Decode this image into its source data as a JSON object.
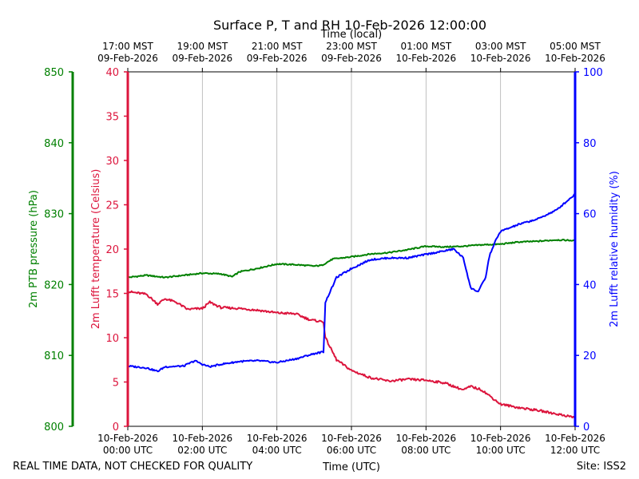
{
  "chart_data": {
    "type": "line",
    "title": "Surface P, T and RH 10-Feb-2026 12:00:00",
    "top_axis_label": "Time (local)",
    "bottom_axis_label": "Time (UTC)",
    "footer_left": "REAL TIME DATA, NOT CHECKED FOR QUALITY",
    "footer_right": "Site: ISS2",
    "x_range_hours_utc": [
      0,
      12
    ],
    "x_ticks_utc": [
      {
        "hour": 0,
        "date": "10-Feb-2026",
        "time": "00:00 UTC"
      },
      {
        "hour": 2,
        "date": "10-Feb-2026",
        "time": "02:00 UTC"
      },
      {
        "hour": 4,
        "date": "10-Feb-2026",
        "time": "04:00 UTC"
      },
      {
        "hour": 6,
        "date": "10-Feb-2026",
        "time": "06:00 UTC"
      },
      {
        "hour": 8,
        "date": "10-Feb-2026",
        "time": "08:00 UTC"
      },
      {
        "hour": 10,
        "date": "10-Feb-2026",
        "time": "10:00 UTC"
      },
      {
        "hour": 12,
        "date": "10-Feb-2026",
        "time": "12:00 UTC"
      }
    ],
    "x_ticks_local": [
      {
        "hour": 0,
        "time": "17:00 MST",
        "date": "09-Feb-2026"
      },
      {
        "hour": 2,
        "time": "19:00 MST",
        "date": "09-Feb-2026"
      },
      {
        "hour": 4,
        "time": "21:00 MST",
        "date": "09-Feb-2026"
      },
      {
        "hour": 6,
        "time": "23:00 MST",
        "date": "09-Feb-2026"
      },
      {
        "hour": 8,
        "time": "01:00 MST",
        "date": "10-Feb-2026"
      },
      {
        "hour": 10,
        "time": "03:00 MST",
        "date": "10-Feb-2026"
      },
      {
        "hour": 12,
        "time": "05:00 MST",
        "date": "10-Feb-2026"
      }
    ],
    "grid": true,
    "axes": {
      "pressure": {
        "label": "2m PTB pressure (hPa)",
        "range": [
          800,
          850
        ],
        "ticks": [
          800,
          810,
          820,
          830,
          840,
          850
        ],
        "color": "#008000"
      },
      "temperature": {
        "label": "2m Lufft temperature (Celsius)",
        "range": [
          0,
          40
        ],
        "ticks": [
          0,
          5,
          10,
          15,
          20,
          25,
          30,
          35,
          40
        ],
        "color": "#dc143c"
      },
      "humidity": {
        "label": "2m Lufft relative humidity (%)",
        "range": [
          0,
          100
        ],
        "ticks": [
          0,
          20,
          40,
          60,
          80,
          100
        ],
        "color": "#0000ff"
      }
    },
    "series": [
      {
        "name": "2m PTB pressure (hPa)",
        "axis": "pressure",
        "color": "#008000",
        "points": [
          [
            0,
            821.0
          ],
          [
            0.5,
            821.3
          ],
          [
            1,
            821.0
          ],
          [
            1.5,
            821.3
          ],
          [
            2,
            821.6
          ],
          [
            2.5,
            821.5
          ],
          [
            2.8,
            821.1
          ],
          [
            3,
            821.8
          ],
          [
            3.5,
            822.3
          ],
          [
            4,
            822.9
          ],
          [
            4.5,
            822.8
          ],
          [
            5,
            822.6
          ],
          [
            5.2,
            822.7
          ],
          [
            5.5,
            823.6
          ],
          [
            6,
            823.9
          ],
          [
            6.5,
            824.3
          ],
          [
            7,
            824.5
          ],
          [
            7.5,
            824.9
          ],
          [
            8,
            825.4
          ],
          [
            8.5,
            825.3
          ],
          [
            9,
            825.4
          ],
          [
            9.5,
            825.6
          ],
          [
            10,
            825.7
          ],
          [
            10.5,
            826.0
          ],
          [
            11,
            826.1
          ],
          [
            11.5,
            826.3
          ],
          [
            12,
            826.2
          ]
        ]
      },
      {
        "name": "2m Lufft temperature (Celsius)",
        "axis": "temperature",
        "color": "#dc143c",
        "points": [
          [
            0,
            15.2
          ],
          [
            0.5,
            14.9
          ],
          [
            0.8,
            13.8
          ],
          [
            1,
            14.4
          ],
          [
            1.3,
            14.0
          ],
          [
            1.6,
            13.2
          ],
          [
            2,
            13.3
          ],
          [
            2.2,
            14.0
          ],
          [
            2.5,
            13.4
          ],
          [
            3,
            13.3
          ],
          [
            3.5,
            13.1
          ],
          [
            4,
            12.8
          ],
          [
            4.5,
            12.7
          ],
          [
            4.9,
            12.0
          ],
          [
            5.25,
            11.8
          ],
          [
            5.3,
            10.0
          ],
          [
            5.6,
            7.5
          ],
          [
            6,
            6.3
          ],
          [
            6.5,
            5.5
          ],
          [
            7,
            5.1
          ],
          [
            7.5,
            5.3
          ],
          [
            8,
            5.2
          ],
          [
            8.5,
            4.9
          ],
          [
            9,
            4.1
          ],
          [
            9.2,
            4.5
          ],
          [
            9.5,
            4.1
          ],
          [
            10,
            2.5
          ],
          [
            10.5,
            2.1
          ],
          [
            11,
            1.8
          ],
          [
            11.5,
            1.4
          ],
          [
            12,
            1.0
          ]
        ]
      },
      {
        "name": "2m Lufft relative humidity (%)",
        "axis": "humidity",
        "color": "#0000ff",
        "points": [
          [
            0,
            17.0
          ],
          [
            0.5,
            16.5
          ],
          [
            0.8,
            15.5
          ],
          [
            1,
            16.8
          ],
          [
            1.5,
            17.0
          ],
          [
            1.8,
            18.5
          ],
          [
            2,
            17.5
          ],
          [
            2.2,
            16.8
          ],
          [
            2.5,
            17.5
          ],
          [
            3,
            18.3
          ],
          [
            3.5,
            18.5
          ],
          [
            4,
            18.0
          ],
          [
            4.5,
            19.0
          ],
          [
            5,
            20.5
          ],
          [
            5.25,
            21.0
          ],
          [
            5.3,
            35.0
          ],
          [
            5.6,
            42.0
          ],
          [
            6,
            44.5
          ],
          [
            6.5,
            47.0
          ],
          [
            7,
            47.5
          ],
          [
            7.5,
            47.5
          ],
          [
            8,
            48.5
          ],
          [
            8.5,
            49.5
          ],
          [
            8.75,
            50.0
          ],
          [
            9,
            47.5
          ],
          [
            9.2,
            39.0
          ],
          [
            9.4,
            38.0
          ],
          [
            9.6,
            42.0
          ],
          [
            9.7,
            48.0
          ],
          [
            9.85,
            52.0
          ],
          [
            10,
            55.0
          ],
          [
            10.5,
            57.0
          ],
          [
            11,
            58.5
          ],
          [
            11.5,
            61.0
          ],
          [
            12,
            65.5
          ]
        ]
      }
    ]
  }
}
